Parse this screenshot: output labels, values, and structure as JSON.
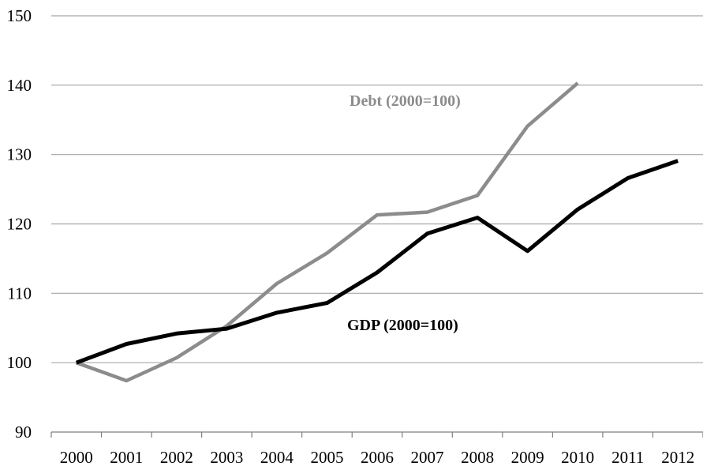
{
  "chart_data": {
    "type": "line",
    "title": "",
    "xlabel": "",
    "ylabel": "",
    "x": [
      "2000",
      "2001",
      "2002",
      "2003",
      "2004",
      "2005",
      "2006",
      "2007",
      "2008",
      "2009",
      "2010",
      "2011",
      "2012"
    ],
    "ylim": [
      90,
      150
    ],
    "yticks": [
      90,
      100,
      110,
      120,
      130,
      140,
      150
    ],
    "grid": true,
    "legend": "none",
    "series": [
      {
        "name": "Debt (2000=100)",
        "color": "#8c8c8c",
        "values": [
          100,
          97.4,
          100.7,
          105.3,
          111.4,
          115.8,
          121.3,
          121.7,
          124.1,
          134.1,
          140.3,
          null,
          null
        ]
      },
      {
        "name": "GDP (2000=100)",
        "color": "#000000",
        "values": [
          100,
          102.7,
          104.2,
          104.9,
          107.2,
          108.6,
          113.0,
          118.6,
          120.9,
          116.1,
          122.1,
          126.6,
          129.1
        ]
      }
    ]
  }
}
